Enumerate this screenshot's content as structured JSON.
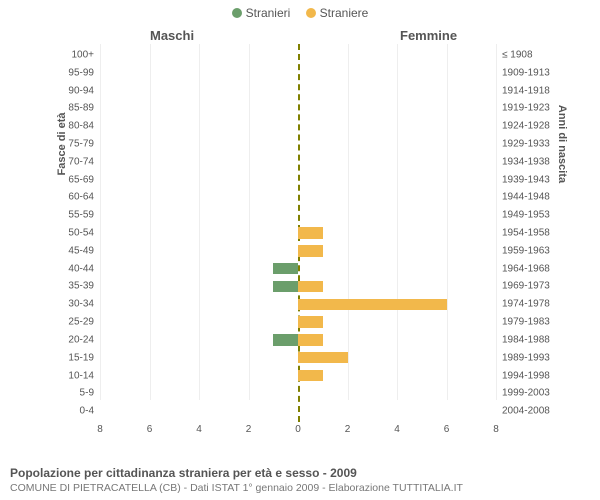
{
  "legend": {
    "male": {
      "label": "Stranieri",
      "color": "#6b9e6b"
    },
    "female": {
      "label": "Straniere",
      "color": "#f2b84b"
    }
  },
  "panel_titles": {
    "left": "Maschi",
    "right": "Femmine"
  },
  "y_axis_left_label": "Fasce di età",
  "y_axis_right_label": "Anni di nascita",
  "footer": {
    "title": "Popolazione per cittadinanza straniera per età e sesso - 2009",
    "subtitle": "COMUNE DI PIETRACATELLA (CB) - Dati ISTAT 1° gennaio 2009 - Elaborazione TUTTITALIA.IT"
  },
  "chart": {
    "type": "population-pyramid",
    "x_max": 8,
    "x_ticks": [
      8,
      6,
      4,
      2,
      0,
      2,
      4,
      6,
      8
    ],
    "center_line_color": "#808000",
    "grid_color": "#eeeeee",
    "male_color": "#6b9e6b",
    "female_color": "#f2b84b",
    "label_fontsize": 10,
    "rows": [
      {
        "age": "100+",
        "birth": "≤ 1908",
        "male": 0,
        "female": 0
      },
      {
        "age": "95-99",
        "birth": "1909-1913",
        "male": 0,
        "female": 0
      },
      {
        "age": "90-94",
        "birth": "1914-1918",
        "male": 0,
        "female": 0
      },
      {
        "age": "85-89",
        "birth": "1919-1923",
        "male": 0,
        "female": 0
      },
      {
        "age": "80-84",
        "birth": "1924-1928",
        "male": 0,
        "female": 0
      },
      {
        "age": "75-79",
        "birth": "1929-1933",
        "male": 0,
        "female": 0
      },
      {
        "age": "70-74",
        "birth": "1934-1938",
        "male": 0,
        "female": 0
      },
      {
        "age": "65-69",
        "birth": "1939-1943",
        "male": 0,
        "female": 0
      },
      {
        "age": "60-64",
        "birth": "1944-1948",
        "male": 0,
        "female": 0
      },
      {
        "age": "55-59",
        "birth": "1949-1953",
        "male": 0,
        "female": 0
      },
      {
        "age": "50-54",
        "birth": "1954-1958",
        "male": 0,
        "female": 1
      },
      {
        "age": "45-49",
        "birth": "1959-1963",
        "male": 0,
        "female": 1
      },
      {
        "age": "40-44",
        "birth": "1964-1968",
        "male": 1,
        "female": 0
      },
      {
        "age": "35-39",
        "birth": "1969-1973",
        "male": 1,
        "female": 1
      },
      {
        "age": "30-34",
        "birth": "1974-1978",
        "male": 0,
        "female": 6
      },
      {
        "age": "25-29",
        "birth": "1979-1983",
        "male": 0,
        "female": 1
      },
      {
        "age": "20-24",
        "birth": "1984-1988",
        "male": 1,
        "female": 1
      },
      {
        "age": "15-19",
        "birth": "1989-1993",
        "male": 0,
        "female": 2
      },
      {
        "age": "10-14",
        "birth": "1994-1998",
        "male": 0,
        "female": 1
      },
      {
        "age": "5-9",
        "birth": "1999-2003",
        "male": 0,
        "female": 0
      },
      {
        "age": "0-4",
        "birth": "2004-2008",
        "male": 0,
        "female": 0
      }
    ]
  }
}
